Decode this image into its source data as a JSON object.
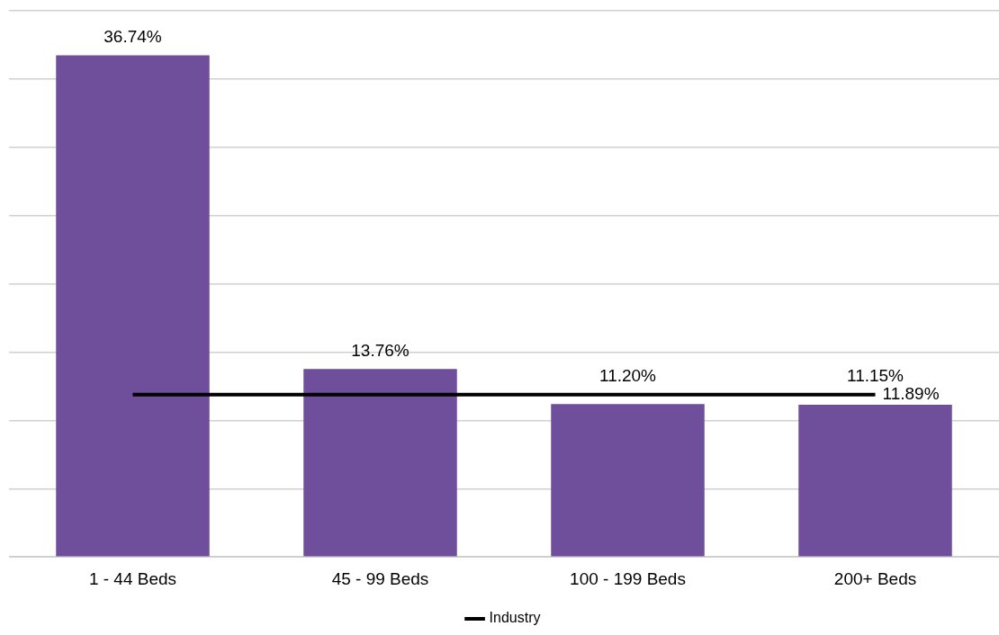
{
  "chart_data": {
    "type": "bar",
    "categories": [
      "1 - 44 Beds",
      "45 - 99 Beds",
      "100 - 199 Beds",
      "200+ Beds"
    ],
    "series": [
      {
        "color": "#6f4e9b",
        "values": [
          36.74,
          13.76,
          11.2,
          11.15
        ],
        "value_labels": [
          "36.74%",
          "13.76%",
          "11.20%",
          "11.15%"
        ]
      },
      {
        "type": "line",
        "name": "Industry",
        "color": "#000000",
        "values": [
          11.89,
          11.89,
          11.89,
          11.89
        ],
        "value_labels": [
          null,
          null,
          null,
          "11.89%"
        ]
      }
    ],
    "ylim": [
      0,
      40
    ],
    "yticks": [
      0,
      5,
      10,
      15,
      20,
      25,
      30,
      35,
      40
    ],
    "tick_labels": "x",
    "grid": "y",
    "legend": "bottom",
    "marker": "none",
    "line_style": "solid"
  }
}
